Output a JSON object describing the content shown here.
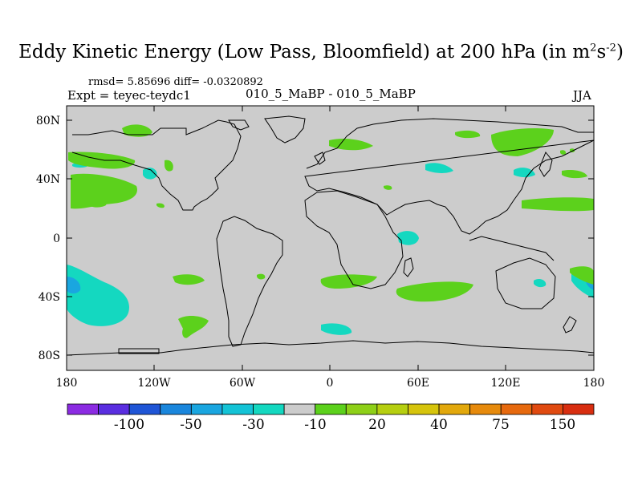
{
  "title": {
    "main": "Eddy Kinetic Energy (Low Pass, Bloomfield) at 200 hPa (in m",
    "exp1": "2",
    "mid": "s",
    "exp2": "-2",
    "end": ")"
  },
  "stats": {
    "rmsd_label": "rmsd=",
    "rmsd_value": "5.85696",
    "diff_label": "diff=",
    "diff_value": "-0.0320892"
  },
  "left_label": "Expt = teyec-teydc1",
  "center_label": "010_5_MaBP - 010_5_MaBP",
  "season": "JJA",
  "map": {
    "projection": "cylindrical-equidistant",
    "lon_range": [
      -180,
      180
    ],
    "lat_range": [
      -90,
      90
    ],
    "background_color": "#cccccc",
    "y_tick_labels": [
      "80N",
      "40N",
      "0",
      "40S",
      "80S"
    ],
    "x_tick_labels": [
      "180",
      "120W",
      "60W",
      "0",
      "60E",
      "120E",
      "180"
    ]
  },
  "colorbar": {
    "colors": [
      "#8b2be2",
      "#5a2ee0",
      "#1f55d6",
      "#1a86dc",
      "#1aa6e0",
      "#14c3d6",
      "#14d8c0",
      "#cccccc",
      "#5cd11c",
      "#8ed018",
      "#b6cf10",
      "#d6c40c",
      "#e2a80c",
      "#e68a0c",
      "#e6690e",
      "#e04a10",
      "#d82e10"
    ],
    "labels": [
      "-100",
      "-50",
      "-30",
      "-10",
      "20",
      "40",
      "75",
      "150"
    ]
  },
  "anomaly_regions": [
    {
      "name": "green-blob-north-pacific",
      "color": "#5cd11c"
    },
    {
      "name": "cyan-blob-south-pacific",
      "color": "#14d8c0"
    },
    {
      "name": "blue-core-south-pacific",
      "color": "#1aa6e0"
    }
  ]
}
